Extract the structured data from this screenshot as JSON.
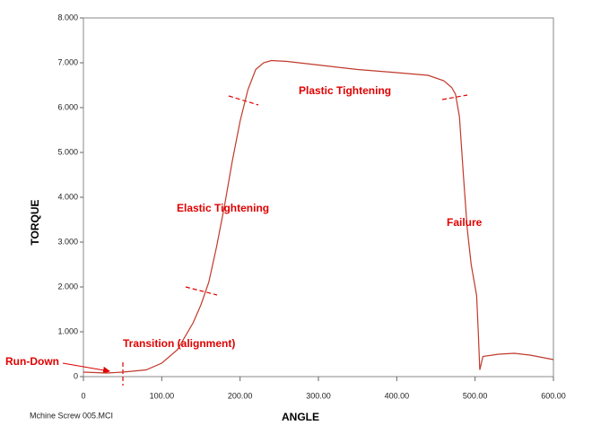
{
  "chart_data": {
    "type": "line",
    "x_label": "ANGLE",
    "y_label": "TORQUE",
    "footer": "Mchine Screw  005.MCI",
    "annotations": [
      "Run-Down",
      "Transition (alignment)",
      "Elastic Tightening",
      "Plastic Tightening",
      "Failure"
    ],
    "color": "#c0392b",
    "annotation_color": "#e00000",
    "x": [
      0,
      30,
      50,
      80,
      100,
      120,
      140,
      150,
      160,
      170,
      180,
      190,
      200,
      210,
      220,
      230,
      240,
      260,
      300,
      350,
      400,
      440,
      460,
      470,
      475,
      480,
      485,
      490,
      495,
      500,
      502,
      504,
      506,
      510,
      530,
      550,
      570,
      600
    ],
    "values": [
      0.1,
      0.08,
      0.1,
      0.15,
      0.3,
      0.6,
      1.2,
      1.6,
      2.1,
      2.9,
      3.8,
      4.8,
      5.7,
      6.4,
      6.85,
      7.0,
      7.05,
      7.03,
      6.95,
      6.85,
      6.78,
      6.72,
      6.6,
      6.45,
      6.3,
      5.8,
      4.5,
      3.3,
      2.5,
      2.0,
      1.8,
      1.0,
      0.15,
      0.45,
      0.5,
      0.52,
      0.48,
      0.38
    ],
    "xlim": [
      0,
      600
    ],
    "ylim": [
      0,
      8
    ],
    "xticks": [
      0,
      {
        "value": 100,
        "label": "100.00"
      },
      {
        "value": 200,
        "label": "200.00"
      },
      {
        "value": 300,
        "label": "300.00"
      },
      {
        "value": 400,
        "label": "400.00"
      },
      {
        "value": 500,
        "label": "500.00"
      },
      {
        "value": 600,
        "label": "600.00"
      }
    ],
    "yticks": [
      0,
      {
        "value": 1,
        "label": "1.000"
      },
      {
        "value": 2,
        "label": "2.000"
      },
      {
        "value": 3,
        "label": "3.000"
      },
      {
        "value": 4,
        "label": "4.000"
      },
      {
        "value": 5,
        "label": "5.000"
      },
      {
        "value": 6,
        "label": "6.000"
      },
      {
        "value": 7,
        "label": "7.000"
      },
      {
        "value": 8,
        "label": "8.000"
      }
    ]
  }
}
